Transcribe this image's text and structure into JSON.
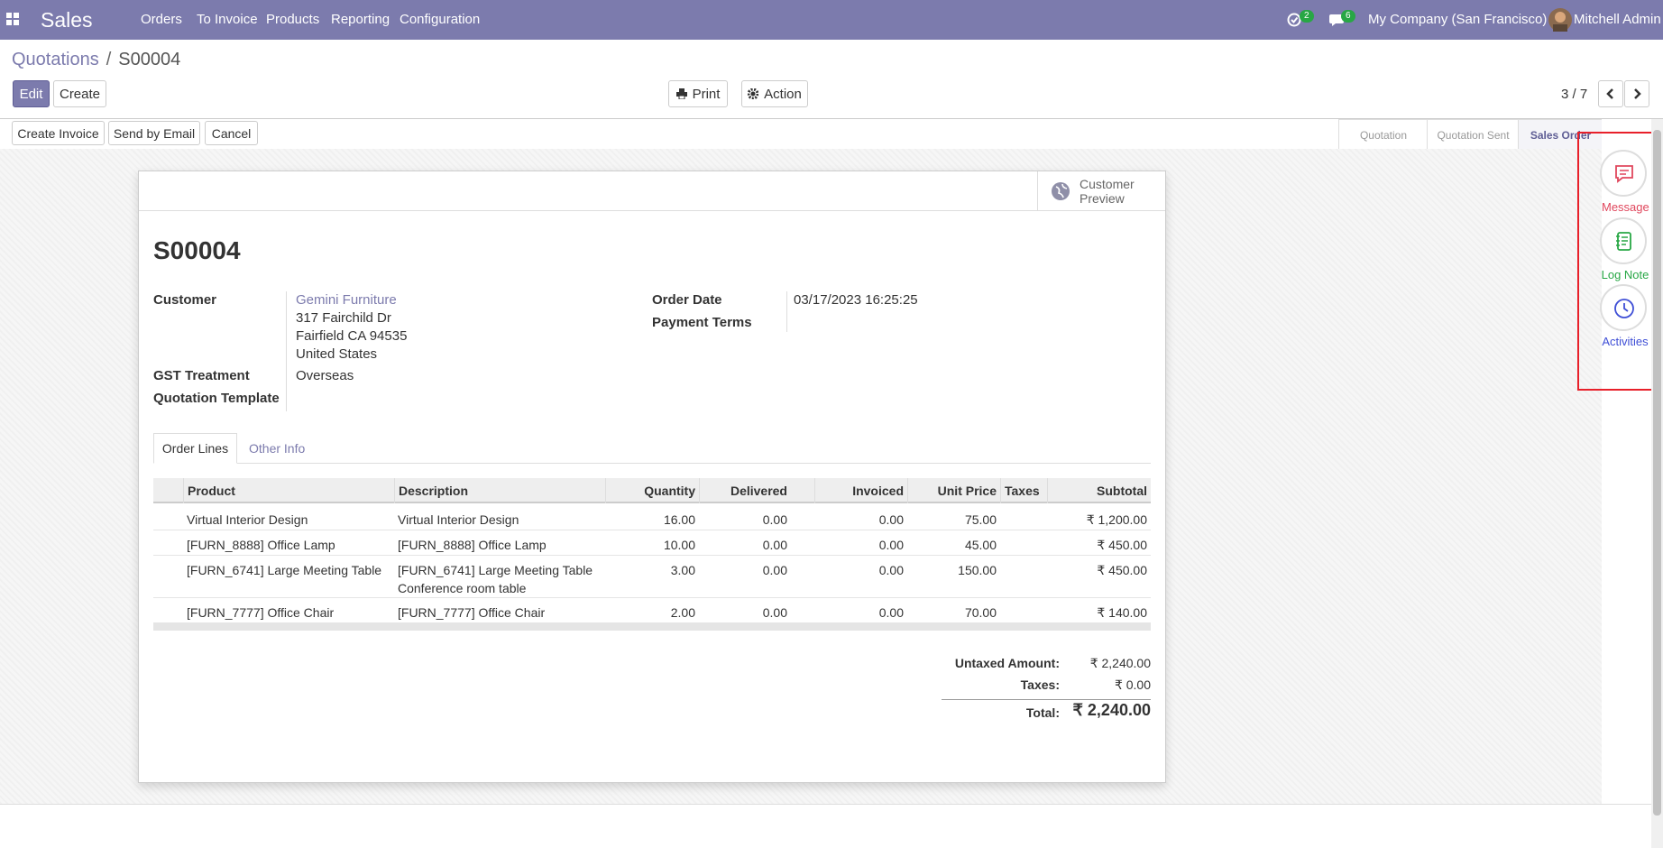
{
  "navbar": {
    "app": "Sales",
    "menu": [
      "Orders",
      "To Invoice",
      "Products",
      "Reporting",
      "Configuration"
    ],
    "activity_badge": "2",
    "message_badge": "6",
    "company": "My Company (San Francisco)",
    "user": "Mitchell Admin"
  },
  "breadcrumb": {
    "parent": "Quotations",
    "separator": "/",
    "current": "S00004"
  },
  "control_panel": {
    "edit": "Edit",
    "create": "Create",
    "print": "Print",
    "action": "Action",
    "pager": "3 / 7"
  },
  "statusbar": {
    "buttons": [
      "Create Invoice",
      "Send by Email",
      "Cancel"
    ],
    "stages": [
      "Quotation",
      "Quotation Sent",
      "Sales Order"
    ]
  },
  "sheet": {
    "customer_preview": "Customer Preview",
    "name": "S00004",
    "customer": {
      "label": "Customer",
      "name": "Gemini Furniture",
      "address": [
        "317 Fairchild Dr",
        "Fairfield CA 94535",
        "United States"
      ]
    },
    "gst_treatment": {
      "label": "GST Treatment",
      "value": "Overseas"
    },
    "quotation_template": {
      "label": "Quotation Template"
    },
    "order_date": {
      "label": "Order Date",
      "value": "03/17/2023 16:25:25"
    },
    "payment_terms": {
      "label": "Payment Terms"
    },
    "tabs": [
      "Order Lines",
      "Other Info"
    ],
    "table": {
      "columns": [
        "Product",
        "Description",
        "Quantity",
        "Delivered",
        "Invoiced",
        "Unit Price",
        "Taxes",
        "Subtotal"
      ],
      "rows": [
        {
          "product": "Virtual Interior Design",
          "description": "Virtual Interior Design",
          "quantity": "16.00",
          "delivered": "0.00",
          "invoiced": "0.00",
          "unit_price": "75.00",
          "subtotal": "₹ 1,200.00"
        },
        {
          "product": "[FURN_8888] Office Lamp",
          "description": "[FURN_8888] Office Lamp",
          "quantity": "10.00",
          "delivered": "0.00",
          "invoiced": "0.00",
          "unit_price": "45.00",
          "subtotal": "₹ 450.00"
        },
        {
          "product": "[FURN_6741] Large Meeting Table",
          "description": "[FURN_6741] Large Meeting Table\nConference room table",
          "quantity": "3.00",
          "delivered": "0.00",
          "invoiced": "0.00",
          "unit_price": "150.00",
          "subtotal": "₹ 450.00"
        },
        {
          "product": "[FURN_7777] Office Chair",
          "description": "[FURN_7777] Office Chair",
          "quantity": "2.00",
          "delivered": "0.00",
          "invoiced": "0.00",
          "unit_price": "70.00",
          "subtotal": "₹ 140.00"
        }
      ]
    },
    "totals": [
      {
        "label": "Untaxed Amount:",
        "value": "₹ 2,240.00"
      },
      {
        "label": "Taxes:",
        "value": "₹ 0.00"
      },
      {
        "label": "Total:",
        "value": "₹ 2,240.00"
      }
    ]
  },
  "chatter": [
    "Message",
    "Log Note",
    "Activities"
  ]
}
